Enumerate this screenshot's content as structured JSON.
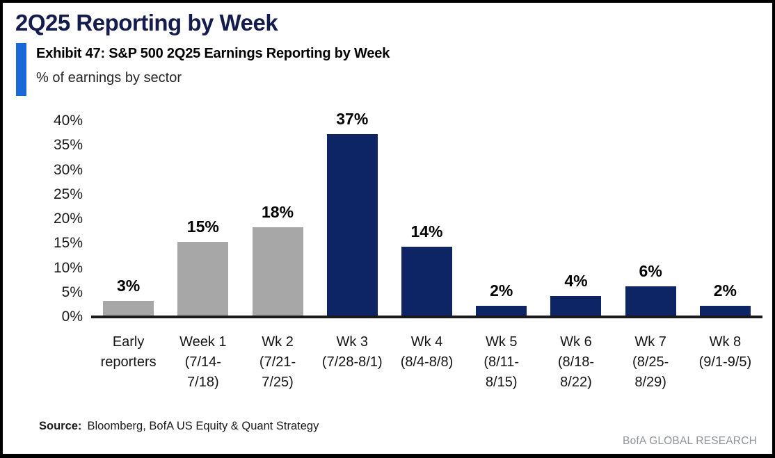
{
  "header": {
    "title": "2Q25 Reporting by Week",
    "exhibit_title": "Exhibit 47: S&P 500 2Q25 Earnings Reporting by Week",
    "exhibit_subtitle": "% of earnings by sector",
    "accent_color": "#1b69d8"
  },
  "chart_data": {
    "type": "bar",
    "title": "S&P 500 2Q25 Earnings Reporting by Week",
    "ylabel": "% of earnings by sector",
    "ylim": [
      0,
      40
    ],
    "grid": false,
    "y_ticks": [
      "0%",
      "5%",
      "10%",
      "15%",
      "20%",
      "25%",
      "30%",
      "35%",
      "40%"
    ],
    "categories": [
      "Early reporters",
      "Week 1 (7/14-7/18)",
      "Wk 2 (7/21-7/25)",
      "Wk 3 (7/28-8/1)",
      "Wk 4 (8/4-8/8)",
      "Wk 5 (8/11-8/15)",
      "Wk 6 (8/18-8/22)",
      "Wk 7 (8/25-8/29)",
      "Wk 8 (9/1-9/5)"
    ],
    "tick_label_lines": [
      [
        "Early",
        "reporters"
      ],
      [
        "Week 1",
        "(7/14-",
        "7/18)"
      ],
      [
        "Wk 2",
        "(7/21-",
        "7/25)"
      ],
      [
        "Wk 3",
        "(7/28-8/1)"
      ],
      [
        "Wk 4",
        "(8/4-8/8)"
      ],
      [
        "Wk 5",
        "(8/11-",
        "8/15)"
      ],
      [
        "Wk 6",
        "(8/18-",
        "8/22)"
      ],
      [
        "Wk 7",
        "(8/25-",
        "8/29)"
      ],
      [
        "Wk 8",
        "(9/1-9/5)"
      ]
    ],
    "values": [
      3,
      15,
      18,
      37,
      14,
      2,
      4,
      6,
      2
    ],
    "value_labels": [
      "3%",
      "15%",
      "18%",
      "37%",
      "14%",
      "2%",
      "4%",
      "6%",
      "2%"
    ],
    "bar_colors": [
      "#a7a7a7",
      "#a7a7a7",
      "#a7a7a7",
      "#0d2565",
      "#0d2565",
      "#0d2565",
      "#0d2565",
      "#0d2565",
      "#0d2565"
    ]
  },
  "footer": {
    "source_label": "Source:",
    "source_text": "Bloomberg, BofA US Equity & Quant Strategy",
    "brand": "BofA GLOBAL RESEARCH"
  }
}
